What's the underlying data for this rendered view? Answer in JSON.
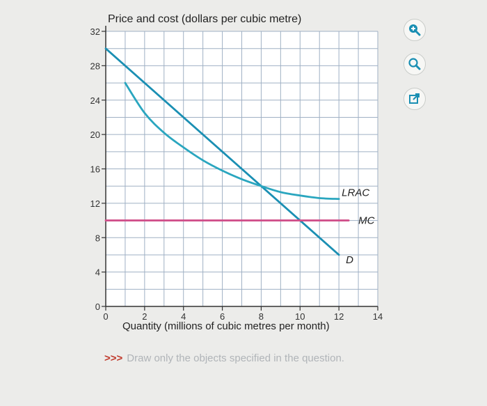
{
  "chart_data": {
    "type": "line",
    "ylabel": "Price and cost (dollars per cubic metre)",
    "xlabel": "Quantity (millions of cubic metres per month)",
    "xlim": [
      0,
      14
    ],
    "ylim": [
      0,
      32
    ],
    "x_ticks": [
      0,
      2,
      4,
      6,
      8,
      10,
      12,
      14
    ],
    "y_ticks": [
      0,
      4,
      8,
      12,
      16,
      20,
      24,
      28,
      32
    ],
    "grid": true,
    "series": [
      {
        "name": "D",
        "color": "#1a8fb3",
        "x": [
          0,
          12
        ],
        "y": [
          30,
          6
        ]
      },
      {
        "name": "LRAC",
        "color": "#2aa6bf",
        "x": [
          1,
          2,
          3,
          4,
          5,
          6,
          7,
          8,
          9,
          10,
          11,
          12
        ],
        "y": [
          26,
          22.5,
          20.2,
          18.5,
          17,
          15.8,
          14.8,
          14,
          13.3,
          12.9,
          12.6,
          12.5
        ]
      },
      {
        "name": "MC",
        "color": "#d0508a",
        "x": [
          0,
          12.5
        ],
        "y": [
          10,
          10
        ]
      }
    ]
  },
  "toolbar": {
    "zoom_in_icon": "zoom-in-icon",
    "zoom_out_icon": "zoom-out-icon",
    "popout_icon": "external-link-icon"
  },
  "note": {
    "arrows": ">>>",
    "text": "Draw only the objects specified in the question."
  }
}
